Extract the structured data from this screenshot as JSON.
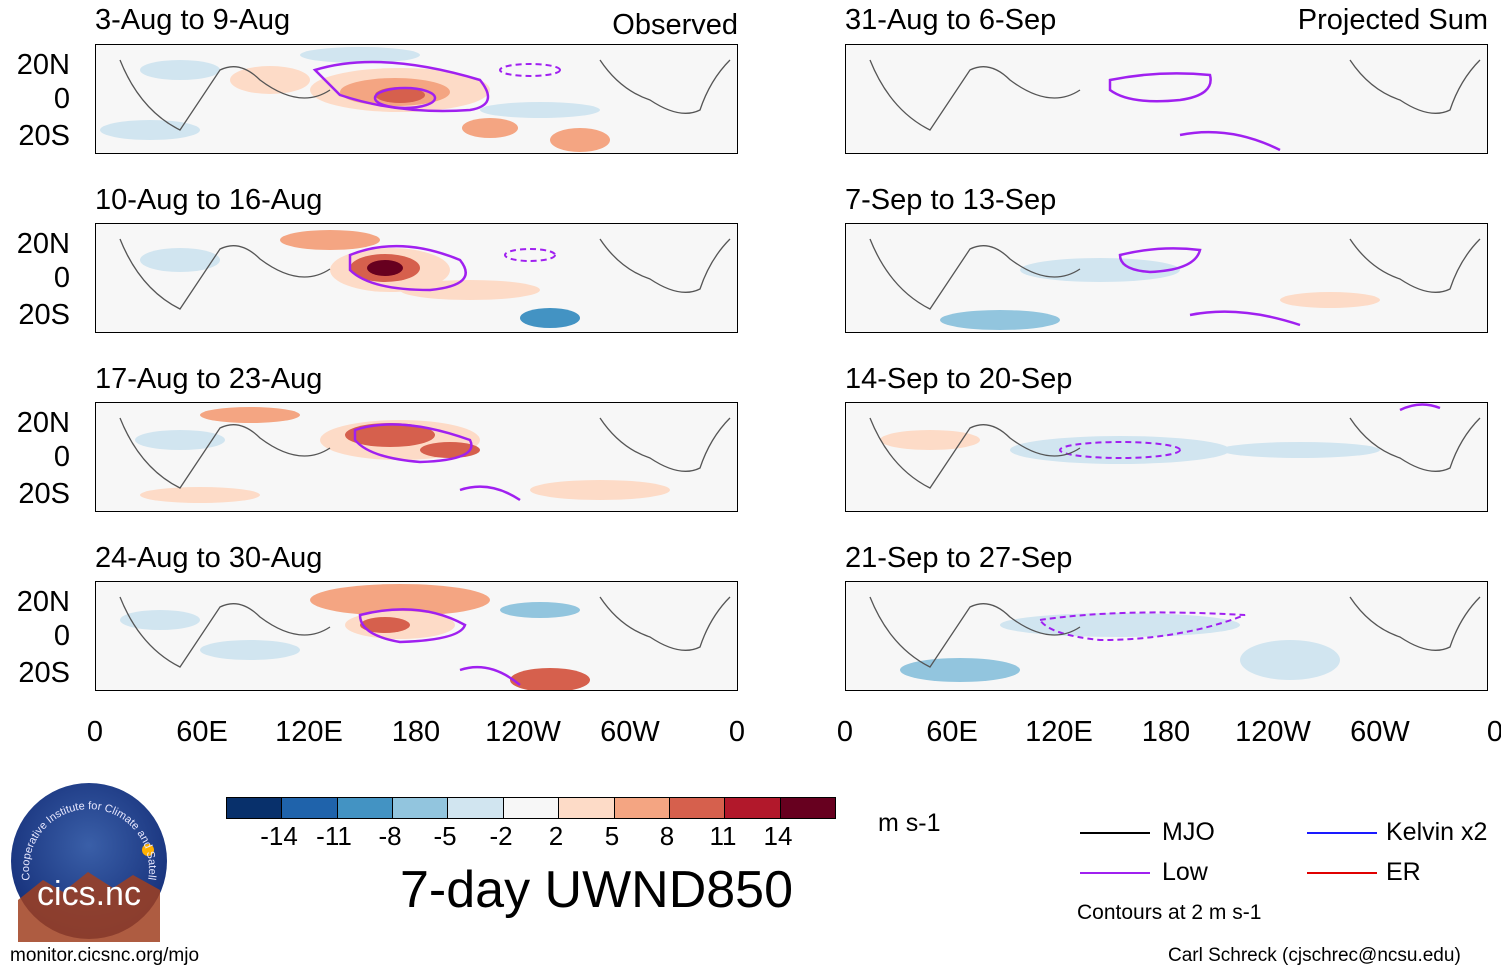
{
  "header": {
    "left_label": "Observed",
    "right_label": "Projected Sum"
  },
  "panels": {
    "left": [
      {
        "title": "3-Aug to 9-Aug"
      },
      {
        "title": "10-Aug to 16-Aug"
      },
      {
        "title": "17-Aug to 23-Aug"
      },
      {
        "title": "24-Aug to 30-Aug"
      }
    ],
    "right": [
      {
        "title": "31-Aug to 6-Sep"
      },
      {
        "title": "7-Sep to 13-Sep"
      },
      {
        "title": "14-Sep to 20-Sep"
      },
      {
        "title": "21-Sep to 27-Sep"
      }
    ]
  },
  "axes": {
    "lat_labels": [
      "20N",
      "0",
      "20S"
    ],
    "lon_labels": [
      "0",
      "60E",
      "120E",
      "180",
      "120W",
      "60W",
      "0"
    ]
  },
  "colorbar": {
    "unit": "m s-1",
    "tick_labels": [
      "-14",
      "-11",
      "-8",
      "-5",
      "-2",
      "2",
      "5",
      "8",
      "11",
      "14"
    ],
    "colors": [
      "#08306b",
      "#1f63ab",
      "#4393c3",
      "#92c5de",
      "#d1e5f0",
      "#f7f7f7",
      "#fddbc7",
      "#f4a582",
      "#d6604d",
      "#b2182b",
      "#67001f"
    ]
  },
  "main_title": "7-day UWND850",
  "legend": {
    "items": [
      {
        "label": "MJO",
        "color": "#000000"
      },
      {
        "label": "Kelvin x2",
        "color": "#1a1aff"
      },
      {
        "label": "Low",
        "color": "#a020f0"
      },
      {
        "label": "ER",
        "color": "#e00000"
      }
    ],
    "note": "Contours at 2 m s-1"
  },
  "logo": {
    "ring_text": "Cooperative Institute for Climate and Satellites",
    "name": "cics.nc"
  },
  "footer": {
    "website": "monitor.cicsnc.org/mjo",
    "credit": "Carl Schreck (cjschrec@ncsu.edu)"
  }
}
